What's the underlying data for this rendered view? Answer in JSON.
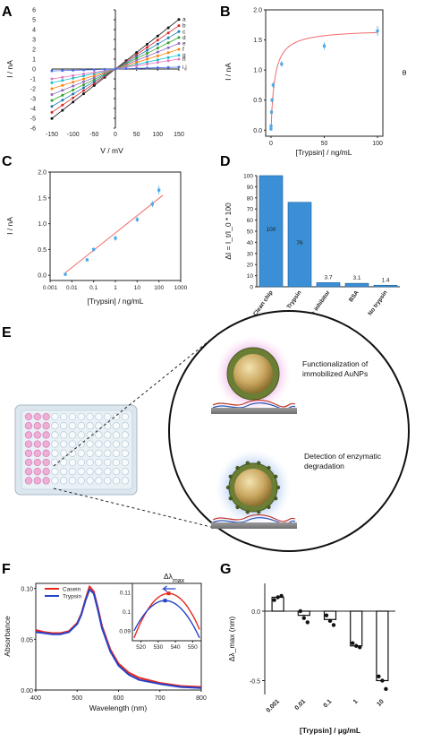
{
  "panels": {
    "a": {
      "letter": "A"
    },
    "b": {
      "letter": "B"
    },
    "c": {
      "letter": "C"
    },
    "d": {
      "letter": "D"
    },
    "e": {
      "letter": "E",
      "callout1": [
        "Functionalization of",
        "immobilized AuNPs"
      ],
      "callout2": [
        "Detection of enzymatic",
        "degradation"
      ]
    },
    "f": {
      "letter": "F"
    },
    "g": {
      "letter": "G"
    }
  },
  "chart_data": [
    {
      "id": "A",
      "type": "line",
      "xlabel": "V / mV",
      "ylabel": "I / nA",
      "xlim": [
        -150,
        150
      ],
      "ylim": [
        -6,
        6
      ],
      "xticks": [
        -150,
        -100,
        -50,
        0,
        50,
        100,
        150
      ],
      "yticks": [
        -6,
        -5,
        -4,
        -3,
        -2,
        -1,
        0,
        1,
        2,
        3,
        4,
        5,
        6
      ],
      "x": [
        -150,
        -125,
        -100,
        -75,
        -50,
        -25,
        0,
        25,
        50,
        75,
        100,
        125,
        150
      ],
      "series": [
        {
          "name": "a",
          "slope": 0.0335,
          "color": "#111111"
        },
        {
          "name": "b",
          "slope": 0.0293,
          "color": "#d62728"
        },
        {
          "name": "c",
          "slope": 0.0253,
          "color": "#1f77b4"
        },
        {
          "name": "d",
          "slope": 0.0213,
          "color": "#2ca02c"
        },
        {
          "name": "e",
          "slope": 0.0173,
          "color": "#9467bd"
        },
        {
          "name": "f",
          "slope": 0.0133,
          "color": "#ff7f0e"
        },
        {
          "name": "g",
          "slope": 0.0093,
          "color": "#17becf"
        },
        {
          "name": "h",
          "slope": 0.0067,
          "color": "#e377c2"
        },
        {
          "name": "i,j",
          "slope": 0.0013,
          "color": "#4a6fe3"
        }
      ]
    },
    {
      "id": "B",
      "type": "scatter",
      "xlabel": "[Trypsin] / ng/mL",
      "ylabel": "I / nA",
      "y2label": "θ",
      "xlim": [
        -5,
        105
      ],
      "ylim": [
        -0.1,
        2.0
      ],
      "xticks": [
        0,
        50,
        100
      ],
      "yticks": [
        0.0,
        0.5,
        1.0,
        1.5,
        2.0
      ],
      "points": [
        {
          "x": 0.005,
          "y": 0.02,
          "err": 0.03
        },
        {
          "x": 0.05,
          "y": 0.07,
          "err": 0.03
        },
        {
          "x": 0.5,
          "y": 0.3,
          "err": 0.04
        },
        {
          "x": 1,
          "y": 0.5,
          "err": 0.04
        },
        {
          "x": 2,
          "y": 0.75,
          "err": 0.05
        },
        {
          "x": 10,
          "y": 1.1,
          "err": 0.05
        },
        {
          "x": 50,
          "y": 1.4,
          "err": 0.06
        },
        {
          "x": 100,
          "y": 1.65,
          "err": 0.08
        }
      ],
      "fit": {
        "vmax": 1.68,
        "k": 3.5
      },
      "colors": {
        "points": "#4aa8e8",
        "fit": "#f06b6b"
      }
    },
    {
      "id": "C",
      "type": "scatter",
      "xlabel": "[Trypsin] / ng/mL",
      "ylabel": "I / nA",
      "xscale": "log",
      "xlim": [
        0.001,
        1000
      ],
      "ylim": [
        -0.1,
        2.0
      ],
      "xticks": [
        "0.001",
        "0.01",
        "0.1",
        "1",
        "10",
        "100",
        "1000"
      ],
      "yticks": [
        0.0,
        0.5,
        1.0,
        1.5,
        2.0
      ],
      "points": [
        {
          "x": 0.005,
          "y": 0.02,
          "err": 0.03
        },
        {
          "x": 0.05,
          "y": 0.3,
          "err": 0.03
        },
        {
          "x": 0.1,
          "y": 0.5,
          "err": 0.04
        },
        {
          "x": 1,
          "y": 0.72,
          "err": 0.05
        },
        {
          "x": 10,
          "y": 1.08,
          "err": 0.05
        },
        {
          "x": 50,
          "y": 1.38,
          "err": 0.06
        },
        {
          "x": 100,
          "y": 1.65,
          "err": 0.08
        }
      ],
      "fit": {
        "from": [
          0.005,
          0.05
        ],
        "to": [
          150,
          1.55
        ]
      },
      "colors": {
        "points": "#4aa8e8",
        "fit": "#f06b6b"
      }
    },
    {
      "id": "D",
      "type": "bar",
      "ylabel": "ΔI = I_t/I_0 * 100",
      "ylim": [
        0,
        100
      ],
      "yticks": [
        0,
        10,
        20,
        30,
        40,
        50,
        60,
        70,
        80,
        90,
        100
      ],
      "categories": [
        "Clean chip",
        "Trypsin",
        "Trypsin + inhibitor",
        "BSA",
        "No trypsin"
      ],
      "values": [
        100,
        76,
        3.7,
        3.1,
        1.4
      ],
      "labels": [
        "100",
        "76",
        "3.7",
        "3.1",
        "1.4"
      ],
      "color": "#3b8fd6"
    },
    {
      "id": "F",
      "type": "line",
      "xlabel": "Wavelength (nm)",
      "ylabel": "Absorbance",
      "xlim": [
        400,
        800
      ],
      "ylim": [
        0,
        0.105
      ],
      "xticks": [
        400,
        500,
        600,
        700,
        800
      ],
      "yticks": [
        0.0,
        0.05,
        0.1
      ],
      "x": [
        400,
        420,
        440,
        460,
        480,
        500,
        510,
        520,
        530,
        540,
        550,
        560,
        580,
        600,
        625,
        650,
        700,
        750,
        800
      ],
      "series": [
        {
          "name": "Casein",
          "color": "#e8281e",
          "values": [
            0.059,
            0.057,
            0.056,
            0.056,
            0.058,
            0.066,
            0.075,
            0.089,
            0.102,
            0.097,
            0.081,
            0.063,
            0.04,
            0.026,
            0.017,
            0.012,
            0.007,
            0.004,
            0.003
          ]
        },
        {
          "name": "Trypsin",
          "color": "#2443c9",
          "values": [
            0.057,
            0.056,
            0.055,
            0.055,
            0.057,
            0.065,
            0.074,
            0.088,
            0.099,
            0.095,
            0.079,
            0.061,
            0.038,
            0.024,
            0.015,
            0.01,
            0.006,
            0.003,
            0.002
          ]
        }
      ],
      "inset": {
        "title": "Δλ",
        "title_sub": "max",
        "xlim": [
          515,
          555
        ],
        "ylim": [
          0.0985,
          0.1005
        ],
        "xticks": [
          520,
          530,
          540,
          550
        ],
        "yticks": [
          0.09,
          0.1,
          0.11
        ],
        "casein_peak": 536,
        "trypsin_peak": 534
      }
    },
    {
      "id": "G",
      "type": "bar",
      "xlabel": "[Trypsin] / µg/mL",
      "ylabel": "Δλ_max (nm)",
      "ylim": [
        -0.6,
        0.2
      ],
      "yticks": [
        -0.5,
        0.0
      ],
      "categories": [
        "0.001",
        "0.01",
        "0.1",
        "1",
        "10"
      ],
      "values": [
        0.1,
        -0.03,
        -0.06,
        -0.25,
        -0.5
      ],
      "points": [
        [
          0.08,
          0.1,
          0.11
        ],
        [
          0.0,
          -0.05,
          -0.08
        ],
        [
          -0.03,
          -0.07,
          -0.1
        ],
        [
          -0.23,
          -0.25,
          -0.26
        ],
        [
          -0.47,
          -0.5,
          -0.56
        ]
      ],
      "color": "#111111"
    }
  ]
}
